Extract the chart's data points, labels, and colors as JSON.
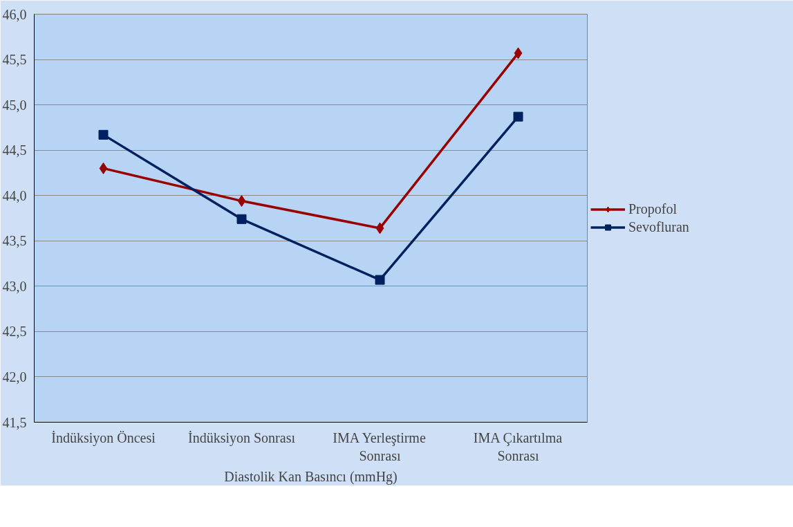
{
  "chart_data": {
    "type": "line",
    "xlabel": "Diastolik Kan Basıncı (mmHg)",
    "categories": [
      "İndüksiyon Öncesi",
      "İndüksiyon Sonrası",
      "IMA Yerleştirme Sonrası",
      "IMA Çıkartılma Sonrası"
    ],
    "series": [
      {
        "name": "Propofol",
        "color": "#990000",
        "marker": "diamond",
        "values": [
          44.3,
          43.94,
          43.64,
          45.57
        ]
      },
      {
        "name": "Sevofluran",
        "color": "#002060",
        "marker": "square",
        "values": [
          44.67,
          43.74,
          43.07,
          44.87
        ]
      }
    ],
    "ylim": [
      41.5,
      46.0
    ],
    "yticks": [
      {
        "value": 41.5,
        "label": "41,5"
      },
      {
        "value": 42.0,
        "label": "42,0"
      },
      {
        "value": 42.5,
        "label": "42,5"
      },
      {
        "value": 43.0,
        "label": "43,0"
      },
      {
        "value": 43.5,
        "label": "43,5"
      },
      {
        "value": 44.0,
        "label": "44,0"
      },
      {
        "value": 44.5,
        "label": "44,5"
      },
      {
        "value": 45.0,
        "label": "45,0"
      },
      {
        "value": 45.5,
        "label": "45,5"
      },
      {
        "value": 46.0,
        "label": "46,0"
      }
    ],
    "grid": "y",
    "legend": "right",
    "line_style": "solid"
  }
}
